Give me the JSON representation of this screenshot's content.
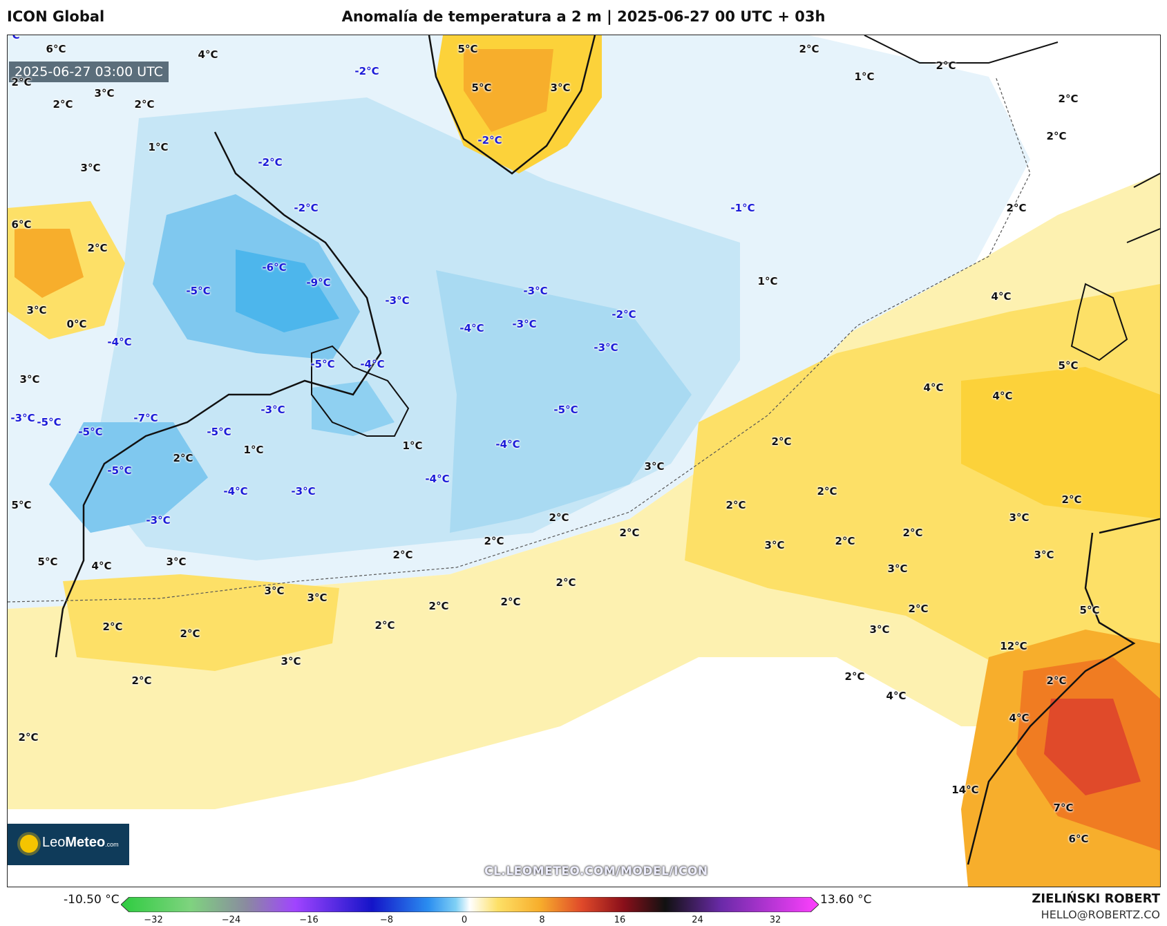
{
  "header": {
    "model": "ICON Global",
    "title": "Anomalía de temperatura a 2 m | 2025-06-27 00 UTC + 03h"
  },
  "map": {
    "timestamp": "2025-06-27 03:00 UTC",
    "watermark": "CL.LEOMETEO.COM/MODEL/ICON",
    "labels": [
      {
        "text": "6°C",
        "kind": "warm"
      },
      {
        "text": "4°C",
        "kind": "warm"
      },
      {
        "text": "2°C",
        "kind": "warm"
      },
      {
        "text": "3°C",
        "kind": "warm"
      },
      {
        "text": "2°C",
        "kind": "warm"
      },
      {
        "text": "2°C",
        "kind": "warm"
      },
      {
        "text": "1°C",
        "kind": "warm"
      },
      {
        "text": "3°C",
        "kind": "warm"
      },
      {
        "text": "6°C",
        "kind": "warm"
      },
      {
        "text": "2°C",
        "kind": "warm"
      },
      {
        "text": "3°C",
        "kind": "warm"
      },
      {
        "text": "0°C",
        "kind": "warm"
      },
      {
        "text": "3°C",
        "kind": "warm"
      },
      {
        "text": "5°C",
        "kind": "warm"
      },
      {
        "text": "5°C",
        "kind": "warm"
      },
      {
        "text": "4°C",
        "kind": "warm"
      },
      {
        "text": "3°C",
        "kind": "warm"
      },
      {
        "text": "3°C",
        "kind": "warm"
      },
      {
        "text": "3°C",
        "kind": "warm"
      },
      {
        "text": "2°C",
        "kind": "warm"
      },
      {
        "text": "2°C",
        "kind": "warm"
      },
      {
        "text": "2°C",
        "kind": "warm"
      },
      {
        "text": "2°C",
        "kind": "warm"
      },
      {
        "text": "1°C",
        "kind": "warm"
      },
      {
        "text": "2°C",
        "kind": "warm"
      },
      {
        "text": "1°C",
        "kind": "warm"
      },
      {
        "text": "3°C",
        "kind": "warm"
      },
      {
        "text": "2°C",
        "kind": "warm"
      },
      {
        "text": "2°C",
        "kind": "warm"
      },
      {
        "text": "2°C",
        "kind": "warm"
      },
      {
        "text": "2°C",
        "kind": "warm"
      },
      {
        "text": "2°C",
        "kind": "warm"
      },
      {
        "text": "2°C",
        "kind": "warm"
      },
      {
        "text": "2°C",
        "kind": "warm"
      },
      {
        "text": "2°C",
        "kind": "warm"
      },
      {
        "text": "2°C",
        "kind": "warm"
      },
      {
        "text": "5°C",
        "kind": "warm"
      },
      {
        "text": "5°C",
        "kind": "warm"
      },
      {
        "text": "3°C",
        "kind": "warm"
      },
      {
        "text": "2°C",
        "kind": "warm"
      },
      {
        "text": "1°C",
        "kind": "warm"
      },
      {
        "text": "2°C",
        "kind": "warm"
      },
      {
        "text": "2°C",
        "kind": "warm"
      },
      {
        "text": "2°C",
        "kind": "warm"
      },
      {
        "text": "2°C",
        "kind": "warm"
      },
      {
        "text": "1°C",
        "kind": "warm"
      },
      {
        "text": "4°C",
        "kind": "warm"
      },
      {
        "text": "5°C",
        "kind": "warm"
      },
      {
        "text": "4°C",
        "kind": "warm"
      },
      {
        "text": "4°C",
        "kind": "warm"
      },
      {
        "text": "3°C",
        "kind": "warm"
      },
      {
        "text": "2°C",
        "kind": "warm"
      },
      {
        "text": "3°C",
        "kind": "warm"
      },
      {
        "text": "2°C",
        "kind": "warm"
      },
      {
        "text": "3°C",
        "kind": "warm"
      },
      {
        "text": "2°C",
        "kind": "warm"
      },
      {
        "text": "3°C",
        "kind": "warm"
      },
      {
        "text": "3°C",
        "kind": "warm"
      },
      {
        "text": "2°C",
        "kind": "warm"
      },
      {
        "text": "2°C",
        "kind": "warm"
      },
      {
        "text": "2°C",
        "kind": "warm"
      },
      {
        "text": "3°C",
        "kind": "warm"
      },
      {
        "text": "4°C",
        "kind": "warm"
      },
      {
        "text": "2°C",
        "kind": "warm"
      },
      {
        "text": "5°C",
        "kind": "warm"
      },
      {
        "text": "12°C",
        "kind": "warm"
      },
      {
        "text": "2°C",
        "kind": "warm"
      },
      {
        "text": "4°C",
        "kind": "warm"
      },
      {
        "text": "14°C",
        "kind": "warm"
      },
      {
        "text": "7°C",
        "kind": "warm"
      },
      {
        "text": "6°C",
        "kind": "warm"
      },
      {
        "text": "-2°C",
        "kind": "cold"
      },
      {
        "text": "-2°C",
        "kind": "cold"
      },
      {
        "text": "-2°C",
        "kind": "cold"
      },
      {
        "text": "-2°C",
        "kind": "cold"
      },
      {
        "text": "-1°C",
        "kind": "cold"
      },
      {
        "text": "-6°C",
        "kind": "cold"
      },
      {
        "text": "-9°C",
        "kind": "cold"
      },
      {
        "text": "-5°C",
        "kind": "cold"
      },
      {
        "text": "-4°C",
        "kind": "cold"
      },
      {
        "text": "-3°C",
        "kind": "cold"
      },
      {
        "text": "-3°C",
        "kind": "cold"
      },
      {
        "text": "-4°C",
        "kind": "cold"
      },
      {
        "text": "-3°C",
        "kind": "cold"
      },
      {
        "text": "-2°C",
        "kind": "cold"
      },
      {
        "text": "-3°C",
        "kind": "cold"
      },
      {
        "text": "-5°C",
        "kind": "cold"
      },
      {
        "text": "-4°C",
        "kind": "cold"
      },
      {
        "text": "-3°C",
        "kind": "cold"
      },
      {
        "text": "-5°C",
        "kind": "cold"
      },
      {
        "text": "-7°C",
        "kind": "cold"
      },
      {
        "text": "-5°C",
        "kind": "cold"
      },
      {
        "text": "-5°C",
        "kind": "cold"
      },
      {
        "text": "-5°C",
        "kind": "cold"
      },
      {
        "text": "-3°C",
        "kind": "cold"
      },
      {
        "text": "-5°C",
        "kind": "cold"
      },
      {
        "text": "-4°C",
        "kind": "cold"
      },
      {
        "text": "-4°C",
        "kind": "cold"
      },
      {
        "text": "-4°C",
        "kind": "cold"
      },
      {
        "text": "-3°C",
        "kind": "cold"
      },
      {
        "text": "-3°C",
        "kind": "cold"
      },
      {
        "text": "-2°C",
        "kind": "cold"
      }
    ]
  },
  "logo": {
    "brand_light": "Leo",
    "brand_bold": "Meteo",
    "domain": ".com"
  },
  "colorbar": {
    "min_label": "-10.50 °C",
    "max_label": "13.60 °C",
    "ticks": [
      "−32",
      "−24",
      "−16",
      "−8",
      "0",
      "8",
      "16",
      "24",
      "32"
    ]
  },
  "credit": {
    "name": "ZIELIŃSKI ROBERT",
    "email": "HELLO@ROBERTZ.CO"
  },
  "colors": {
    "cold_label": "#1b1bd8",
    "warm_label": "#111111",
    "stamp_bg": "#5b6e7b",
    "logo_bg": "#0f3b5a"
  }
}
